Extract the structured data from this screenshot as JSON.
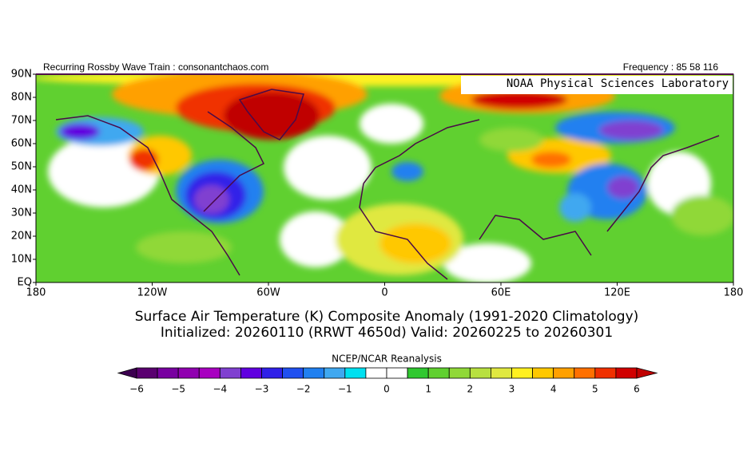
{
  "header": {
    "left": "Recurring Rossby Wave Train : consonantchaos.com",
    "right": "Frequency : 85 58 116",
    "lab": "NOAA Physical Sciences Laboratory"
  },
  "map": {
    "lat_labels": [
      "90N",
      "80N",
      "70N",
      "60N",
      "50N",
      "40N",
      "30N",
      "20N",
      "10N",
      "EQ"
    ],
    "lon_labels": [
      "180",
      "120W",
      "60W",
      "0",
      "60E",
      "120E",
      "180"
    ]
  },
  "title": {
    "line1": "Surface Air Temperature (K) Composite Anomaly (1991-2020 Climatology)",
    "line2": "Initialized: 20260110 (RRWT 4650d) Valid: 20260225 to 20260301"
  },
  "colorbar": {
    "title": "NCEP/NCAR Reanalysis",
    "labels": [
      "−6",
      "−5",
      "−4",
      "−3",
      "−2",
      "−1",
      "0",
      "1",
      "2",
      "3",
      "4",
      "5",
      "6"
    ],
    "colors": [
      "#3c0050",
      "#5a0070",
      "#7800a0",
      "#9000b0",
      "#a800c0",
      "#8040d0",
      "#6000e0",
      "#3020e8",
      "#2050f0",
      "#2080f0",
      "#40a8f0",
      "#00e0f0",
      "#ffffff",
      "#ffffff",
      "#30c830",
      "#60d030",
      "#90d838",
      "#b8e040",
      "#e0e840",
      "#fff020",
      "#ffc800",
      "#ffa000",
      "#ff7000",
      "#f03000",
      "#d00000",
      "#c00000"
    ]
  }
}
